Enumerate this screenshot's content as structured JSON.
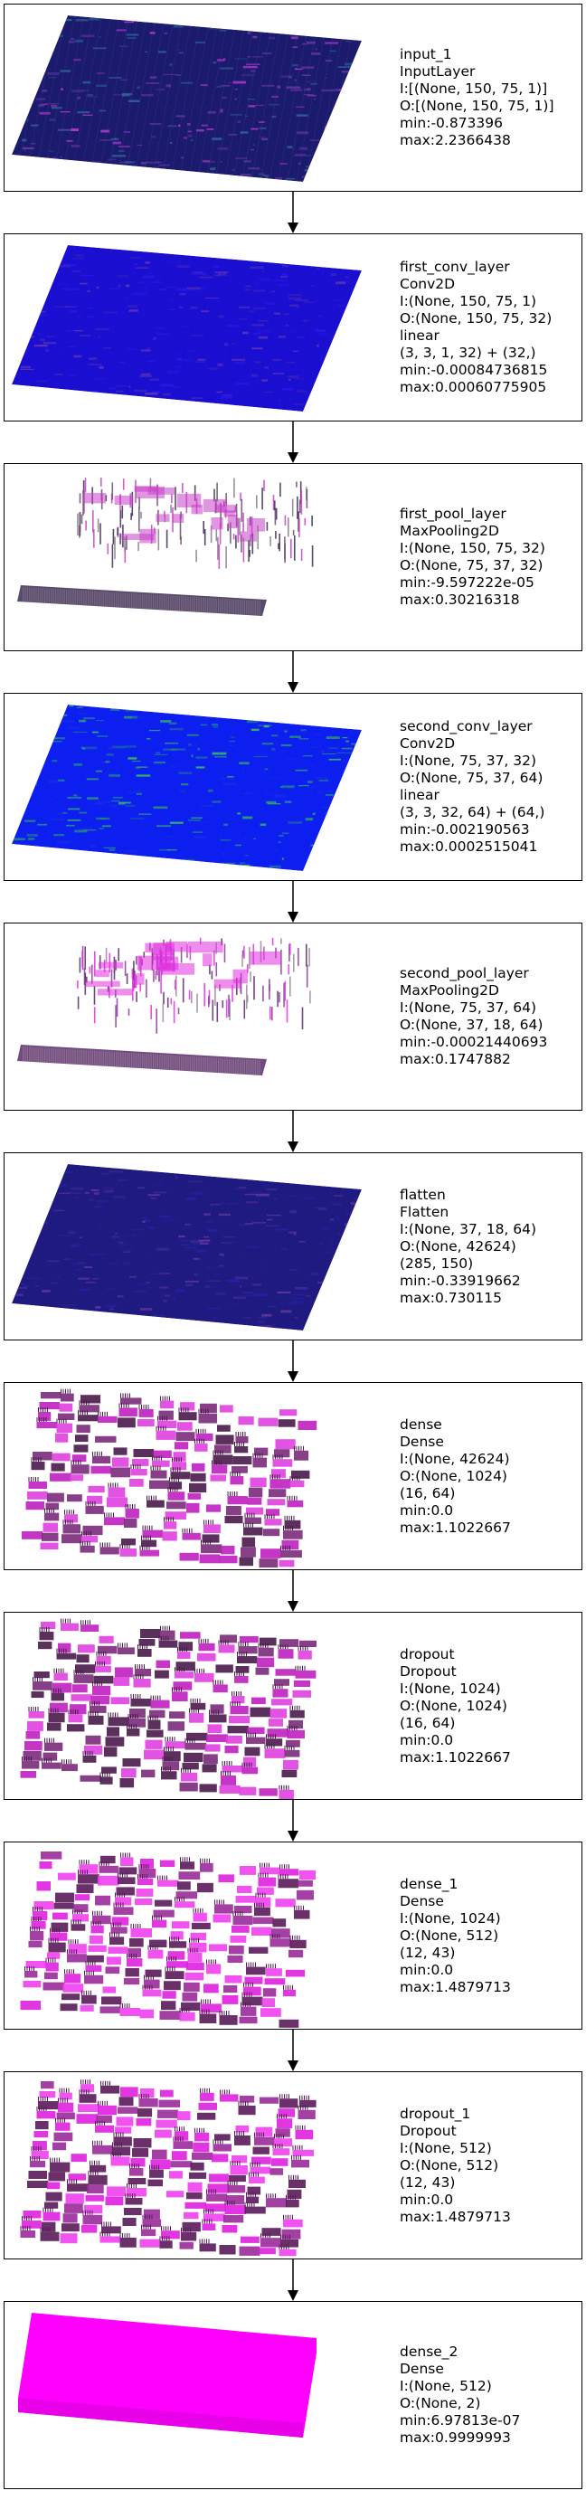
{
  "layers": [
    {
      "lines": [
        "input_1",
        "InputLayer",
        "I:[(None, 150, 75, 1)]",
        "O:[(None, 150, 75, 1)]",
        "min:-0.873396",
        "max:2.2366438"
      ],
      "visual": "slab",
      "colors": [
        "#1b1b6e",
        "#6a3aa8",
        "#c63cd9",
        "#2f6f9a"
      ]
    },
    {
      "lines": [
        "first_conv_layer",
        "Conv2D",
        "I:(None, 150, 75, 1)",
        "O:(None, 150, 75, 32)",
        "linear",
        "(3, 3, 1, 32) + (32,)",
        "min:-0.00084736815",
        "max:0.00060775905"
      ],
      "visual": "slab",
      "colors": [
        "#1a0fd0",
        "#2a1ae8",
        "#4a2ab8",
        "#6b3ab0"
      ]
    },
    {
      "lines": [
        "first_pool_layer",
        "MaxPooling2D",
        "I:(None, 150, 75, 32)",
        "O:(None, 75, 37, 32)",
        "min:-9.597222e-05",
        "max:0.30216318"
      ],
      "visual": "pool",
      "colors": [
        "#3b2b55",
        "#c840c8",
        "#6a4a6a",
        "#8a7a8a"
      ]
    },
    {
      "lines": [
        "second_conv_layer",
        "Conv2D",
        "I:(None, 75, 37, 32)",
        "O:(None, 75, 37, 64)",
        "linear",
        "(3, 3, 32, 64) + (64,)",
        "min:-0.002190563",
        "max:0.0002515041"
      ],
      "visual": "slab",
      "colors": [
        "#0d1ff0",
        "#1d2fe0",
        "#2aa860",
        "#3bd04a"
      ]
    },
    {
      "lines": [
        "second_pool_layer",
        "MaxPooling2D",
        "I:(None, 75, 37, 64)",
        "O:(None, 37, 18, 64)",
        "min:-0.00021440693",
        "max:0.1747882"
      ],
      "visual": "pool",
      "colors": [
        "#5a2a6a",
        "#e030e0",
        "#8a3a9a",
        "#9a8a9a"
      ]
    },
    {
      "lines": [
        "flatten",
        "Flatten",
        "I:(None, 37, 18, 64)",
        "O:(None, 42624)",
        "(285, 150)",
        "min:-0.33919662",
        "max:0.730115"
      ],
      "visual": "slab",
      "colors": [
        "#1e1a80",
        "#2a20a8",
        "#6a3aa0",
        "#3a2a90"
      ]
    },
    {
      "lines": [
        "dense",
        "Dense",
        "I:(None, 42624)",
        "O:(None, 1024)",
        "(16, 64)",
        "min:0.0",
        "max:1.1022667"
      ],
      "visual": "blocks",
      "colors": [
        "#4a1a4a",
        "#c020c0",
        "#7a2a7a",
        "#e040e0"
      ]
    },
    {
      "lines": [
        "dropout",
        "Dropout",
        "I:(None, 1024)",
        "O:(None, 1024)",
        "(16, 64)",
        "min:0.0",
        "max:1.1022667"
      ],
      "visual": "blocks",
      "colors": [
        "#4a1a4a",
        "#c020c0",
        "#7a2a7a",
        "#e040e0"
      ]
    },
    {
      "lines": [
        "dense_1",
        "Dense",
        "I:(None, 1024)",
        "O:(None, 512)",
        "(12, 43)",
        "min:0.0",
        "max:1.4879713"
      ],
      "visual": "blocks",
      "colors": [
        "#5a1a5a",
        "#e020e0",
        "#9a2a9a",
        "#f040f0"
      ]
    },
    {
      "lines": [
        "dropout_1",
        "Dropout",
        "I:(None, 512)",
        "O:(None, 512)",
        "(12, 43)",
        "min:0.0",
        "max:1.4879713"
      ],
      "visual": "blocks",
      "colors": [
        "#5a1a5a",
        "#e020e0",
        "#9a2a9a",
        "#f040f0"
      ]
    },
    {
      "lines": [
        "dense_2",
        "Dense",
        "I:(None, 512)",
        "O:(None, 2)",
        "min:6.97813e-07",
        "max:0.9999993"
      ],
      "visual": "solid",
      "colors": [
        "#ff00ff",
        "#e800e8"
      ]
    }
  ]
}
